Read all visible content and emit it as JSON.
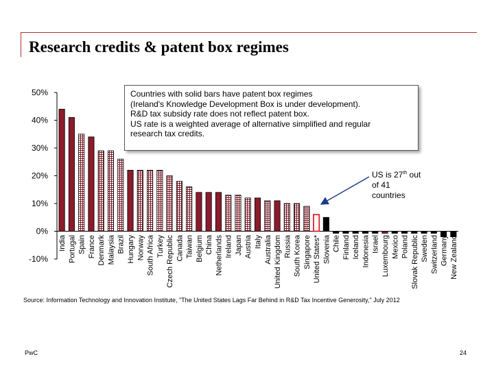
{
  "title": "Research credits & patent box regimes",
  "note": {
    "lines": [
      "Countries with solid bars have patent box regimes",
      "(Ireland's Knowledge Development Box is under development).",
      "R&D tax subsidy rate does not reflect patent box.",
      "US rate is a weighted average of alternative simplified and regular",
      "research tax credits."
    ]
  },
  "callout": {
    "line1_pre": "US is 27",
    "line1_sup": "th",
    "line1_post": " out",
    "line2": "of 41",
    "line3": "countries"
  },
  "source": "Source:  Information Technology and Innovation Institute, \"The United States Lags Far Behind in R&D Tax Incentive Generosity,\" July 2012",
  "footer": {
    "brand": "PwC",
    "page": "24"
  },
  "colors": {
    "patent_box": "#8b1c2b",
    "hatched": "#7a1a26",
    "highlight": "#e0202a",
    "neutral": "#000000",
    "arrow": "#1f3a8a"
  },
  "chart_data": {
    "type": "bar",
    "title": "Research credits & patent box regimes",
    "xlabel": "",
    "ylabel": "",
    "ylim": [
      -0.1,
      0.5
    ],
    "yticks": [
      "50%",
      "40%",
      "30%",
      "20%",
      "10%",
      "0%",
      "-10%"
    ],
    "ytick_values": [
      0.5,
      0.4,
      0.3,
      0.2,
      0.1,
      0.0,
      -0.1
    ],
    "grid": false,
    "categories": [
      "India",
      "Portugal",
      "Spain",
      "France",
      "Denmark",
      "Malaysia",
      "Brazil",
      "Hungary",
      "Norway",
      "South Africa",
      "Turkey",
      "Czech Republic",
      "Canada",
      "Taiwan",
      "Belgium",
      "China",
      "Netherlands",
      "Ireland",
      "Japan",
      "Austria",
      "Italy",
      "Australia",
      "United Kingdom",
      "Russia",
      "South Korea",
      "Singapore",
      "United States*",
      "Slovenia",
      "Chile",
      "Finland",
      "Iceland",
      "Indonesia",
      "Israel",
      "Luxembourg",
      "Mexico",
      "Poland",
      "Slovak Republic",
      "Sweden",
      "Switzerland",
      "Germany",
      "New Zealand"
    ],
    "values": [
      0.44,
      0.41,
      0.35,
      0.34,
      0.29,
      0.29,
      0.26,
      0.22,
      0.22,
      0.22,
      0.22,
      0.2,
      0.18,
      0.16,
      0.14,
      0.14,
      0.14,
      0.13,
      0.13,
      0.12,
      0.12,
      0.11,
      0.11,
      0.1,
      0.1,
      0.09,
      0.06,
      0.05,
      -0.005,
      -0.005,
      -0.005,
      -0.005,
      -0.005,
      -0.005,
      -0.005,
      -0.005,
      -0.005,
      -0.005,
      -0.005,
      -0.02,
      -0.02
    ],
    "styles": [
      "patent_box",
      "patent_box",
      "hatched",
      "patent_box",
      "hatched",
      "hatched",
      "hatched",
      "patent_box",
      "hatched",
      "hatched",
      "hatched",
      "hatched",
      "hatched",
      "hatched",
      "patent_box",
      "patent_box",
      "patent_box",
      "hatched",
      "hatched",
      "hatched",
      "patent_box",
      "hatched",
      "patent_box",
      "hatched",
      "hatched",
      "hatched",
      "highlight",
      "neutral",
      "neutral",
      "neutral",
      "neutral",
      "neutral",
      "neutral",
      "patent_box",
      "neutral",
      "neutral",
      "neutral",
      "neutral",
      "neutral",
      "neutral",
      "neutral"
    ]
  }
}
